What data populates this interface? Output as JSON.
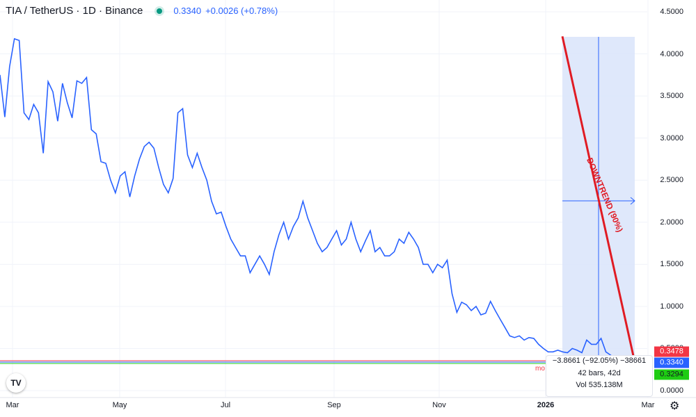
{
  "header": {
    "symbol": "TIA / TetherUS · 1D · Binance",
    "price": "0.3340",
    "change": "+0.0026 (+0.78%)"
  },
  "chart_data": {
    "type": "line",
    "series": [
      {
        "values": [
          3.75,
          3.25,
          3.85,
          4.18,
          4.16,
          3.3,
          3.22,
          3.4,
          3.3,
          2.82,
          3.67,
          3.55,
          3.2,
          3.65,
          3.42,
          3.24,
          3.68,
          3.65,
          3.72,
          3.1,
          3.05,
          2.72,
          2.7,
          2.5,
          2.35,
          2.55,
          2.6,
          2.3,
          2.55,
          2.75,
          2.9,
          2.95,
          2.88,
          2.65,
          2.45,
          2.35,
          2.52,
          3.3,
          3.35,
          2.8,
          2.65,
          2.82,
          2.65,
          2.5,
          2.25,
          2.1,
          2.12,
          1.95,
          1.8,
          1.7,
          1.6,
          1.6,
          1.4,
          1.5,
          1.6,
          1.5,
          1.38,
          1.65,
          1.85,
          2.0,
          1.8,
          1.95,
          2.05,
          2.25,
          2.05,
          1.9,
          1.75,
          1.65,
          1.7,
          1.8,
          1.9,
          1.73,
          1.8,
          2.0,
          1.8,
          1.65,
          1.78,
          1.9,
          1.65,
          1.7,
          1.6,
          1.6,
          1.65,
          1.8,
          1.75,
          1.88,
          1.8,
          1.7,
          1.5,
          1.5,
          1.4,
          1.5,
          1.46,
          1.55,
          1.15,
          0.93,
          1.05,
          1.02,
          0.95,
          1.0,
          0.9,
          0.92,
          1.06,
          0.95,
          0.85,
          0.75,
          0.65,
          0.63,
          0.65,
          0.6,
          0.63,
          0.62,
          0.55,
          0.5,
          0.46,
          0.46,
          0.48,
          0.46,
          0.45,
          0.5,
          0.48,
          0.45,
          0.6,
          0.55,
          0.55,
          0.62,
          0.46,
          0.42,
          0.38,
          0.37,
          0.34,
          0.33,
          0.34
        ]
      }
    ],
    "x_labels": [
      "Mar",
      "May",
      "Jul",
      "Sep",
      "Nov",
      "2026",
      "Mar"
    ],
    "y_ticks": [
      "4.5000",
      "4.0000",
      "3.5000",
      "3.0000",
      "2.5000",
      "2.0000",
      "1.5000",
      "1.0000",
      "0.5000",
      "0.0000"
    ],
    "ylim": [
      0,
      4.5
    ],
    "grid": true,
    "horizontal_lines": [
      {
        "value": 0.3478,
        "color": "#f23645"
      },
      {
        "value": 0.334,
        "color": "#2962ff"
      },
      {
        "value": 0.3294,
        "color": "#1ecc13"
      }
    ],
    "drawing": {
      "label": "DOWNTREND (90%)",
      "start_value": 4.2,
      "end_value": 0.334
    }
  },
  "price_tags": {
    "red": "0.3478",
    "blue": "0.3340",
    "green": "0.3294"
  },
  "measure": {
    "line1": "−3.8661 (−92.05%) −38661",
    "line2": "42 bars, 42d",
    "line3": "Vol 535.138M"
  },
  "mo_label": "mo",
  "logo_text": "TV",
  "colors": {
    "line": "#2962ff",
    "trend": "#e01b24",
    "shade": "#dbe5fb"
  },
  "icons": {
    "settings": "gear-icon"
  }
}
